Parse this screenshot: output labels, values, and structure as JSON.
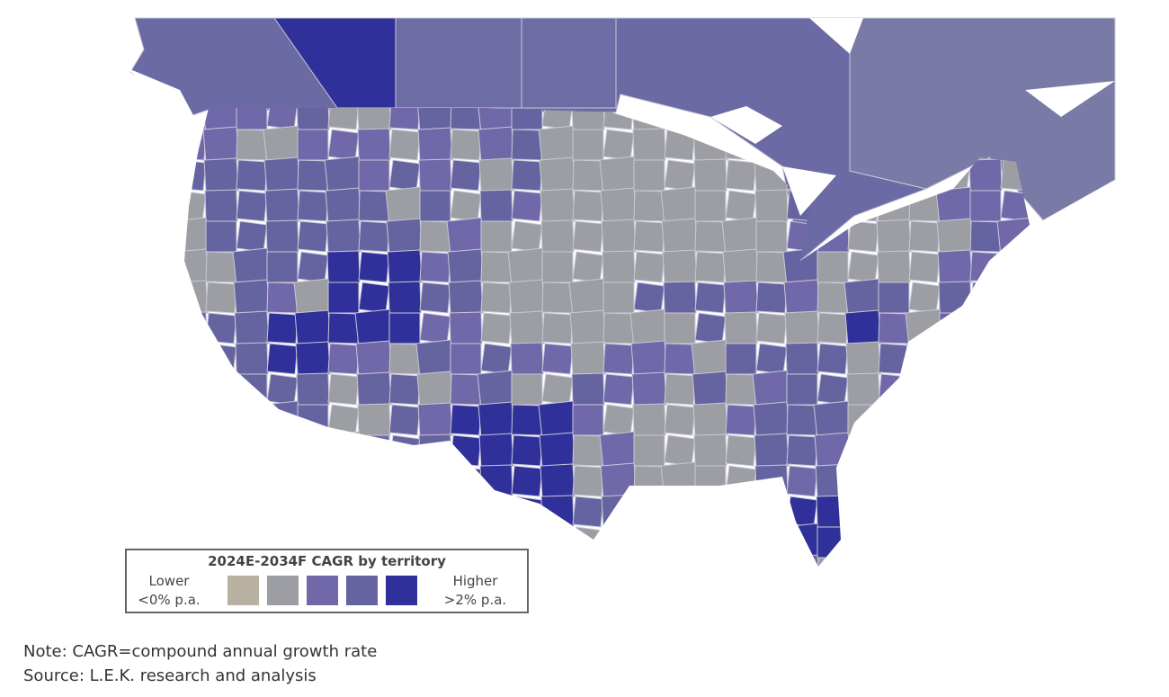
{
  "legend": {
    "title": "2024E-2034F CAGR by territory",
    "lower_line1": "Lower",
    "lower_line2": "<0% p.a.",
    "higher_line1": "Higher",
    "higher_line2": ">2% p.a.",
    "levels": [
      "#b8b0a0",
      "#9c9ea3",
      "#7068a8",
      "#6664a0",
      "#30309a"
    ]
  },
  "colors": {
    "background": "#ffffff",
    "border": "#c8c8d8",
    "canada": "#6c6aa4",
    "canada_east": "#7a7aa6"
  },
  "footer": {
    "note": "Note: CAGR=compound annual growth rate",
    "source": "Source: L.E.K. research and analysis"
  }
}
